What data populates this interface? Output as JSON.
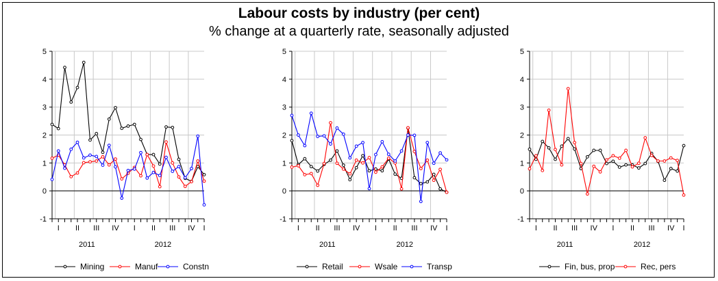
{
  "figure": {
    "title": "Labour costs by industry (per cent)",
    "subtitle": "% change at a quarterly rate, seasonally adjusted"
  },
  "chart_data": [
    {
      "type": "line",
      "x_labels": [
        "I",
        "II",
        "III",
        "IV",
        "I",
        "II",
        "III",
        "IV",
        "I"
      ],
      "years": [
        "2011",
        "2012"
      ],
      "ylim": [
        -1,
        5
      ],
      "y_ticks": [
        -1,
        0,
        1,
        2,
        3,
        4,
        5
      ],
      "grid": true,
      "legend": "bottom",
      "series": [
        {
          "name": "Mining",
          "color": "#000000",
          "values": [
            2.38,
            2.23,
            4.42,
            3.18,
            3.7,
            4.6,
            1.82,
            2.05,
            1.38,
            2.57,
            2.98,
            2.24,
            2.32,
            2.38,
            1.84,
            1.3,
            1.3,
            0.96,
            2.29,
            2.27,
            1.13,
            0.45,
            0.34,
            0.87,
            0.58
          ]
        },
        {
          "name": "Manuf",
          "color": "#ff0000",
          "values": [
            1.17,
            1.28,
            0.93,
            0.51,
            0.64,
            1.01,
            1.04,
            1.07,
            1.22,
            0.93,
            1.14,
            0.43,
            0.63,
            0.84,
            0.54,
            1.3,
            0.89,
            0.15,
            1.75,
            1.0,
            0.5,
            0.16,
            0.33,
            1.07,
            0.35
          ]
        },
        {
          "name": "Constn",
          "color": "#0000ff",
          "values": [
            0.41,
            1.43,
            0.81,
            1.49,
            1.74,
            1.18,
            1.28,
            1.23,
            0.92,
            1.63,
            0.86,
            -0.26,
            0.73,
            0.78,
            1.37,
            0.46,
            0.66,
            0.55,
            1.2,
            0.7,
            0.87,
            0.47,
            0.8,
            1.96,
            -0.5
          ]
        }
      ]
    },
    {
      "type": "line",
      "x_labels": [
        "I",
        "II",
        "III",
        "IV",
        "I",
        "II",
        "III",
        "IV",
        "I"
      ],
      "years": [
        "2011",
        "2012"
      ],
      "ylim": [
        -1,
        5
      ],
      "y_ticks": [
        -1,
        0,
        1,
        2,
        3,
        4,
        5
      ],
      "grid": true,
      "legend": "bottom",
      "series": [
        {
          "name": "Retail",
          "color": "#000000",
          "values": [
            1.8,
            0.94,
            1.15,
            0.87,
            0.71,
            0.95,
            1.1,
            1.43,
            0.92,
            0.4,
            0.83,
            1.26,
            0.72,
            0.78,
            0.72,
            1.14,
            0.6,
            0.45,
            2.25,
            0.47,
            0.26,
            0.32,
            0.59,
            0.07,
            -0.05
          ]
        },
        {
          "name": "Wsale",
          "color": "#ff0000",
          "values": [
            0.85,
            0.9,
            0.58,
            0.62,
            0.2,
            0.98,
            2.44,
            0.99,
            0.78,
            0.61,
            1.1,
            1.0,
            1.19,
            0.67,
            0.86,
            1.17,
            1.0,
            0.07,
            2.26,
            1.41,
            0.8,
            1.1,
            0.38,
            0.77,
            -0.05
          ]
        },
        {
          "name": "Transp",
          "color": "#0000ff",
          "values": [
            2.7,
            2.0,
            1.62,
            2.78,
            1.95,
            1.97,
            1.68,
            2.25,
            2.03,
            1.18,
            1.6,
            1.73,
            0.08,
            1.3,
            1.76,
            1.31,
            1.07,
            1.43,
            2.0,
            1.99,
            -0.38,
            1.73,
            0.99,
            1.36,
            1.11
          ]
        }
      ]
    },
    {
      "type": "line",
      "x_labels": [
        "I",
        "II",
        "III",
        "IV",
        "I",
        "II",
        "III",
        "IV",
        "I"
      ],
      "years": [
        "2011",
        "2012"
      ],
      "ylim": [
        -1,
        5
      ],
      "y_ticks": [
        -1,
        0,
        1,
        2,
        3,
        4,
        5
      ],
      "grid": true,
      "legend": "bottom",
      "series": [
        {
          "name": "Fin, bus, prop",
          "color": "#000000",
          "values": [
            1.49,
            1.13,
            1.77,
            1.54,
            1.13,
            1.6,
            1.87,
            1.5,
            0.8,
            1.22,
            1.45,
            1.45,
            0.98,
            1.06,
            0.85,
            0.93,
            0.93,
            0.82,
            0.98,
            1.34,
            1.06,
            0.38,
            0.8,
            0.71,
            1.62
          ]
        },
        {
          "name": "Rec, pers",
          "color": "#ff0000",
          "values": [
            0.79,
            1.26,
            0.73,
            2.89,
            1.48,
            0.93,
            3.66,
            1.73,
            0.98,
            -0.11,
            0.88,
            0.68,
            1.11,
            1.26,
            1.17,
            1.45,
            0.86,
            0.99,
            1.9,
            1.27,
            1.07,
            1.07,
            1.18,
            1.09,
            -0.15
          ]
        }
      ]
    }
  ]
}
